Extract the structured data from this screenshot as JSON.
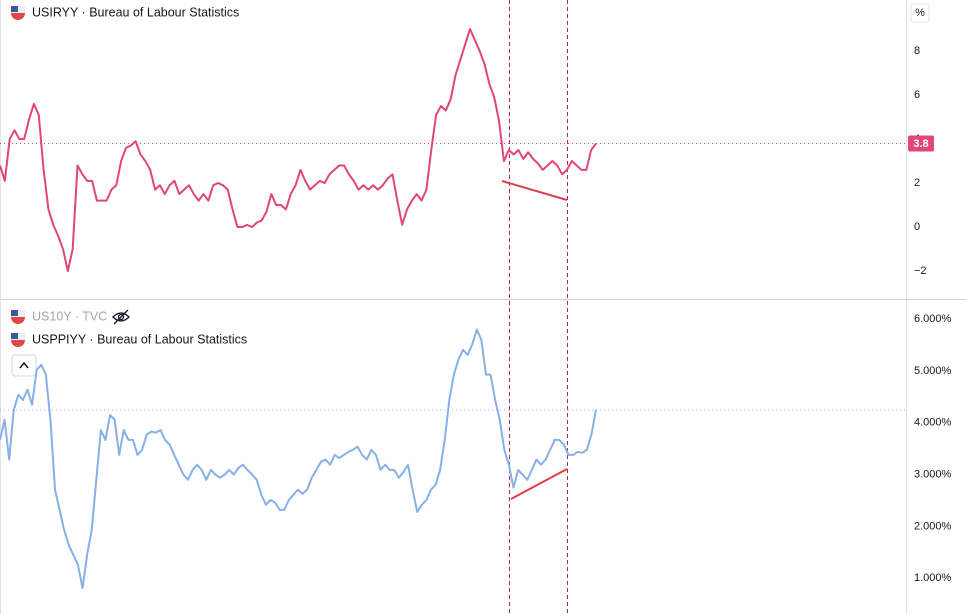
{
  "chart_data": [
    {
      "type": "line",
      "series": [
        {
          "name": "USIRYY · Bureau of Labour Statistics",
          "color": "#e0457b",
          "values": [
            2.8,
            2.1,
            4.0,
            4.4,
            4.0,
            4.0,
            4.9,
            5.6,
            5.1,
            2.6,
            0.8,
            0.1,
            -0.4,
            -1.0,
            -2.0,
            -1.0,
            2.8,
            2.4,
            2.1,
            2.1,
            1.2,
            1.2,
            1.2,
            1.7,
            1.9,
            3.0,
            3.6,
            3.7,
            3.9,
            3.3,
            3.0,
            2.6,
            1.7,
            1.9,
            1.5,
            1.9,
            2.1,
            1.5,
            1.7,
            1.9,
            1.5,
            1.2,
            1.5,
            1.2,
            1.9,
            2.0,
            1.9,
            1.7,
            0.8,
            0.0,
            0.0,
            0.1,
            0.0,
            0.2,
            0.3,
            0.7,
            1.5,
            1.0,
            1.0,
            0.8,
            1.5,
            1.9,
            2.6,
            2.1,
            1.7,
            1.9,
            2.1,
            2.0,
            2.4,
            2.6,
            2.8,
            2.8,
            2.4,
            2.1,
            1.7,
            1.9,
            1.7,
            1.9,
            1.7,
            1.9,
            2.2,
            2.4,
            1.2,
            0.1,
            0.8,
            1.2,
            1.5,
            1.2,
            1.7,
            3.5,
            5.1,
            5.5,
            5.3,
            5.8,
            6.9,
            7.6,
            8.3,
            9.0,
            8.5,
            8.0,
            7.4,
            6.5,
            5.9,
            4.8,
            3.0,
            3.5,
            3.3,
            3.5,
            3.1,
            3.4,
            3.1,
            2.9,
            2.6,
            2.8,
            3.0,
            2.8,
            2.4,
            2.6,
            3.0,
            2.8,
            2.6,
            2.6,
            3.5,
            3.8
          ]
        }
      ],
      "ylim": [
        -3.27,
        10.32
      ],
      "yticks": [
        8,
        6,
        4,
        2,
        0,
        {
          "value": -2,
          "label": "−2"
        }
      ],
      "unit_label": "%",
      "price_line": 3.8,
      "price_label": true
    },
    {
      "type": "line",
      "hidden_series_label": "US10Y · TVC",
      "series": [
        {
          "name": "USPPIYY · Bureau of Labour Statistics",
          "color": "#86b0e6",
          "values": [
            3.67,
            4.06,
            3.29,
            4.25,
            4.54,
            4.44,
            4.64,
            4.35,
            5.02,
            5.12,
            4.93,
            4.06,
            2.71,
            2.32,
            1.93,
            1.64,
            1.45,
            1.26,
            0.81,
            1.45,
            1.93,
            2.9,
            3.86,
            3.67,
            4.15,
            4.06,
            3.38,
            3.86,
            3.67,
            3.67,
            3.38,
            3.48,
            3.77,
            3.83,
            3.81,
            3.86,
            3.67,
            3.58,
            3.38,
            3.19,
            3.0,
            2.9,
            3.09,
            3.19,
            3.09,
            2.9,
            3.09,
            3.0,
            2.94,
            3.0,
            3.09,
            3.0,
            3.13,
            3.19,
            3.09,
            3.0,
            2.9,
            2.61,
            2.42,
            2.51,
            2.46,
            2.32,
            2.32,
            2.51,
            2.61,
            2.71,
            2.63,
            2.71,
            2.94,
            3.09,
            3.25,
            3.29,
            3.19,
            3.38,
            3.32,
            3.38,
            3.44,
            3.48,
            3.54,
            3.38,
            3.29,
            3.48,
            3.38,
            3.09,
            3.19,
            3.09,
            3.09,
            2.94,
            3.05,
            3.19,
            2.71,
            2.28,
            2.42,
            2.51,
            2.71,
            2.8,
            3.09,
            3.67,
            4.44,
            4.93,
            5.22,
            5.41,
            5.31,
            5.51,
            5.8,
            5.6,
            4.93,
            4.93,
            4.44,
            4.06,
            3.48,
            3.19,
            2.75,
            3.09,
            3.0,
            2.9,
            3.09,
            3.29,
            3.19,
            3.29,
            3.48,
            3.67,
            3.67,
            3.58,
            3.38,
            3.38,
            3.44,
            3.42,
            3.48,
            3.77,
            4.25
          ]
        }
      ],
      "ylim": [
        0.31,
        6.37
      ],
      "yticks": [
        {
          "value": 6,
          "label": "6.000%"
        },
        {
          "value": 5,
          "label": "5.000%"
        },
        {
          "value": 4,
          "label": "4.000%"
        },
        {
          "value": 3,
          "label": "3.000%"
        },
        {
          "value": 2,
          "label": "2.000%"
        },
        {
          "value": 1,
          "label": "1.000%"
        }
      ],
      "price_line": 4.25,
      "price_label": false
    }
  ]
}
